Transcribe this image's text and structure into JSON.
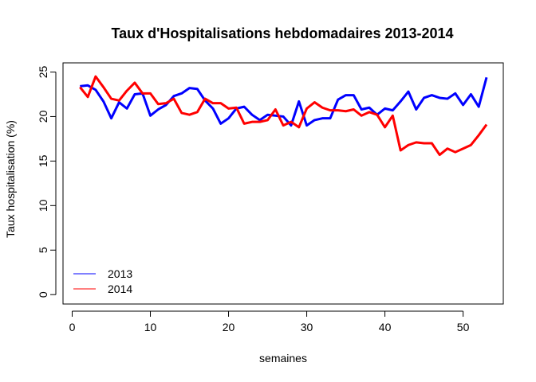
{
  "chart_data": {
    "type": "line",
    "title": "Taux d'Hospitalisations hebdomadaires 2013-2014",
    "xlabel": "semaines",
    "ylabel": "Taux hospitalisation (%)",
    "xlim": [
      0,
      54
    ],
    "ylim": [
      0,
      25
    ],
    "xticks": [
      0,
      10,
      20,
      30,
      40,
      50
    ],
    "yticks": [
      0,
      5,
      10,
      15,
      20,
      25
    ],
    "grid": false,
    "legend_position": "bottom-left",
    "series": [
      {
        "name": "2013",
        "color": "#0000ff",
        "x": [
          1,
          2,
          3,
          4,
          5,
          6,
          7,
          8,
          9,
          10,
          11,
          12,
          13,
          14,
          15,
          16,
          17,
          18,
          19,
          20,
          21,
          22,
          23,
          24,
          25,
          26,
          27,
          28,
          29,
          30,
          31,
          32,
          33,
          34,
          35,
          36,
          37,
          38,
          39,
          40,
          41,
          42,
          43,
          44,
          45,
          46,
          47,
          48,
          49,
          50,
          51,
          52,
          53
        ],
        "values": [
          23.4,
          23.5,
          23.0,
          21.7,
          19.8,
          21.6,
          20.9,
          22.5,
          22.6,
          20.1,
          20.8,
          21.3,
          22.3,
          22.6,
          23.2,
          23.1,
          21.8,
          20.9,
          19.2,
          19.8,
          20.9,
          21.1,
          20.2,
          19.6,
          20.2,
          20.1,
          20.0,
          19.0,
          21.7,
          19.0,
          19.6,
          19.8,
          19.8,
          21.9,
          22.4,
          22.4,
          20.8,
          21.0,
          20.2,
          20.9,
          20.7,
          21.7,
          22.8,
          20.8,
          22.1,
          22.4,
          22.1,
          22.0,
          22.6,
          21.3,
          22.5,
          21.1,
          24.4
        ]
      },
      {
        "name": "2014",
        "color": "#ff0000",
        "x": [
          1,
          2,
          3,
          4,
          5,
          6,
          7,
          8,
          9,
          10,
          11,
          12,
          13,
          14,
          15,
          16,
          17,
          18,
          19,
          20,
          21,
          22,
          23,
          24,
          25,
          26,
          27,
          28,
          29,
          30,
          31,
          32,
          33,
          34,
          35,
          36,
          37,
          38,
          39,
          40,
          41,
          42,
          43,
          44,
          45,
          46,
          47,
          48,
          49,
          50,
          51,
          52,
          53
        ],
        "values": [
          23.3,
          22.2,
          24.5,
          23.3,
          22.0,
          21.8,
          22.9,
          23.8,
          22.6,
          22.6,
          21.4,
          21.5,
          22.0,
          20.4,
          20.2,
          20.5,
          22.0,
          21.5,
          21.5,
          20.9,
          21.0,
          19.2,
          19.4,
          19.4,
          19.6,
          20.8,
          19.0,
          19.4,
          18.8,
          20.9,
          21.6,
          21.0,
          20.7,
          20.7,
          20.6,
          20.8,
          20.1,
          20.5,
          20.2,
          18.8,
          20.1,
          16.2,
          16.8,
          17.1,
          17.0,
          17.0,
          15.7,
          16.4,
          16.0,
          16.4,
          16.8,
          17.9,
          19.1
        ]
      }
    ]
  }
}
